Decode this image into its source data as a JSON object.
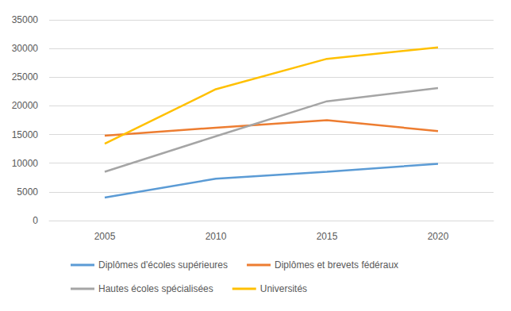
{
  "chart_data": {
    "type": "line",
    "categories": [
      "2005",
      "2010",
      "2015",
      "2020"
    ],
    "series": [
      {
        "name": "Diplômes d'écoles supérieures",
        "color": "#5b9bd5",
        "values": [
          4000,
          7300,
          8500,
          9900
        ]
      },
      {
        "name": "Diplômes et brevets fédéraux",
        "color": "#ed7d31",
        "values": [
          14800,
          16200,
          17500,
          15600
        ]
      },
      {
        "name": "Hautes écoles spécialisées",
        "color": "#a5a5a5",
        "values": [
          8500,
          14700,
          20800,
          23100
        ]
      },
      {
        "name": "Universités",
        "color": "#ffc000",
        "values": [
          13400,
          22900,
          28200,
          30200
        ]
      }
    ],
    "ylim": [
      0,
      35000
    ],
    "yticks": [
      0,
      5000,
      10000,
      15000,
      20000,
      25000,
      30000,
      35000
    ],
    "grid": true,
    "legend": "bottom"
  }
}
